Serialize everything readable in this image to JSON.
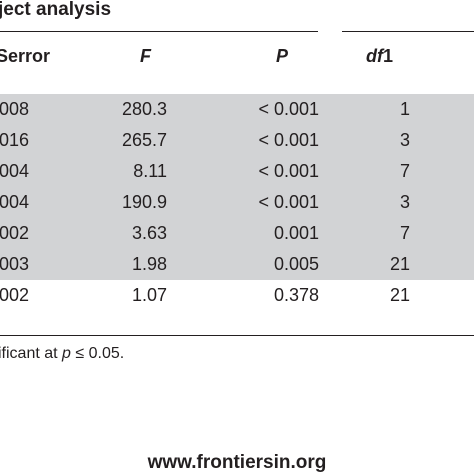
{
  "table": {
    "title": "ject analysis",
    "headers": {
      "serror": "Serror",
      "f": "F",
      "p": "P",
      "df_italic": "df",
      "df_num": "1"
    },
    "rows": [
      {
        "serror": "008",
        "f": "280.3",
        "p": "< 0.001",
        "df1": "1",
        "shaded": true
      },
      {
        "serror": "016",
        "f": "265.7",
        "p": "< 0.001",
        "df1": "3",
        "shaded": true
      },
      {
        "serror": "004",
        "f": "8.11",
        "p": "< 0.001",
        "df1": "7",
        "shaded": true
      },
      {
        "serror": "004",
        "f": "190.9",
        "p": "< 0.001",
        "df1": "3",
        "shaded": true
      },
      {
        "serror": "002",
        "f": "3.63",
        "p": "0.001",
        "df1": "7",
        "shaded": true
      },
      {
        "serror": "003",
        "f": "1.98",
        "p": "0.005",
        "df1": "21",
        "shaded": true
      },
      {
        "serror": "002",
        "f": "1.07",
        "p": "0.378",
        "df1": "21",
        "shaded": false
      }
    ],
    "footnote": {
      "prefix": "ificant at ",
      "var": "p",
      "op": " ≤ ",
      "value": "0.05."
    }
  },
  "source": "www.frontiersin.org",
  "colors": {
    "shade": "#d2d3d5",
    "text": "#231f20"
  }
}
